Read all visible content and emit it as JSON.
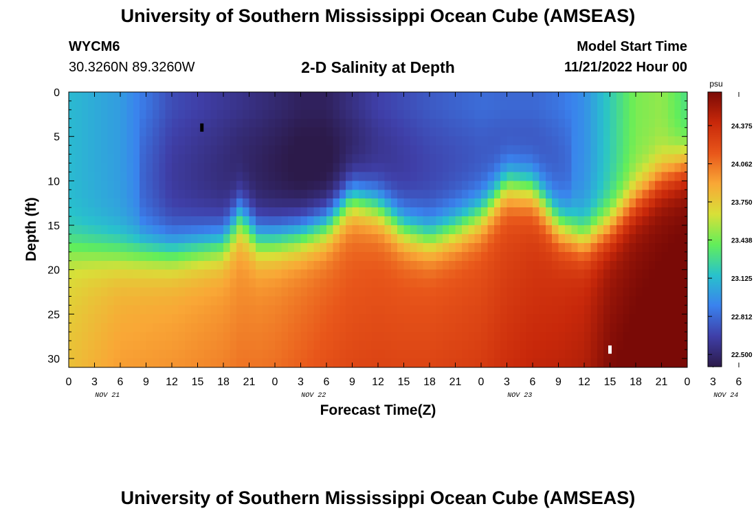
{
  "header": {
    "title": "University of Southern Mississippi Ocean Cube (AMSEAS)",
    "station_id": "WYCM6",
    "coordinates": "30.3260N  89.3260W",
    "model_start_label": "Model Start Time",
    "model_start_value": "11/21/2022 Hour 00",
    "footer_title": "University of Southern Mississippi Ocean Cube (AMSEAS)"
  },
  "colors": {
    "scale": [
      "#2c1a4a",
      "#3f3fa8",
      "#3a82ee",
      "#28c2cc",
      "#62ee5a",
      "#d8e038",
      "#f9a736",
      "#e8561a",
      "#c8280a",
      "#7a0a06"
    ]
  },
  "chart_data": {
    "type": "heatmap",
    "title": "2-D Salinity at Depth",
    "xlabel": "Forecast Time(Z)",
    "ylabel": "Depth (ft)",
    "x_range_hours": [
      0,
      72
    ],
    "y_range_ft": [
      0,
      31
    ],
    "y_ticks": [
      "0",
      "5",
      "10",
      "15",
      "20",
      "25",
      "30"
    ],
    "x_tick_labels": [
      "0",
      "3",
      "6",
      "9",
      "12",
      "15",
      "18",
      "21",
      "0",
      "3",
      "6",
      "9",
      "12",
      "15",
      "18",
      "21",
      "0",
      "3",
      "6",
      "9",
      "12",
      "15",
      "18",
      "21",
      "0",
      "3",
      "6",
      "9",
      "12",
      "15",
      "18",
      "21",
      "0"
    ],
    "day_labels": [
      "NOV 21",
      "NOV 22",
      "NOV 23",
      "NOV 24"
    ],
    "colorbar": {
      "unit": "psu",
      "ticks": [
        "24.375",
        "24.062",
        "23.750",
        "23.438",
        "23.125",
        "22.812",
        "22.500"
      ],
      "range": [
        22.4,
        24.65
      ]
    },
    "halocline_depth_ft": [
      [
        0,
        17.5
      ],
      [
        6,
        18
      ],
      [
        12,
        18
      ],
      [
        15,
        17.5
      ],
      [
        18,
        17
      ],
      [
        20,
        14
      ],
      [
        22,
        16.5
      ],
      [
        24,
        16.5
      ],
      [
        27,
        16
      ],
      [
        30,
        15
      ],
      [
        33,
        12
      ],
      [
        36,
        13
      ],
      [
        39,
        15.5
      ],
      [
        42,
        16.5
      ],
      [
        45,
        15.5
      ],
      [
        48,
        14
      ],
      [
        51,
        10.5
      ],
      [
        54,
        11
      ],
      [
        57,
        15
      ],
      [
        60,
        16.5
      ],
      [
        63,
        15
      ],
      [
        66,
        12
      ],
      [
        69,
        9.5
      ],
      [
        72,
        8
      ]
    ],
    "surface_salinity_psu": [
      [
        0,
        23.12
      ],
      [
        6,
        23.0
      ],
      [
        12,
        22.7
      ],
      [
        18,
        22.6
      ],
      [
        21,
        22.55
      ],
      [
        24,
        22.5
      ],
      [
        27,
        22.45
      ],
      [
        30,
        22.45
      ],
      [
        33,
        22.55
      ],
      [
        36,
        22.65
      ],
      [
        42,
        22.75
      ],
      [
        48,
        22.82
      ],
      [
        51,
        22.8
      ],
      [
        54,
        22.8
      ],
      [
        57,
        22.85
      ],
      [
        60,
        22.95
      ],
      [
        63,
        23.2
      ],
      [
        66,
        23.45
      ],
      [
        69,
        23.5
      ],
      [
        72,
        23.3
      ]
    ],
    "bottom_salinity_psu": [
      [
        0,
        23.68
      ],
      [
        6,
        23.82
      ],
      [
        12,
        23.85
      ],
      [
        18,
        23.9
      ],
      [
        24,
        23.95
      ],
      [
        30,
        24.05
      ],
      [
        36,
        24.1
      ],
      [
        42,
        24.12
      ],
      [
        48,
        24.15
      ],
      [
        54,
        24.25
      ],
      [
        60,
        24.35
      ],
      [
        63,
        24.5
      ],
      [
        66,
        24.55
      ],
      [
        72,
        24.6
      ]
    ],
    "markers": [
      {
        "hour": 15.5,
        "depth_ft": 4,
        "color": "#000000"
      },
      {
        "hour": 63,
        "depth_ft": 29,
        "color": "#ffffff"
      }
    ]
  }
}
